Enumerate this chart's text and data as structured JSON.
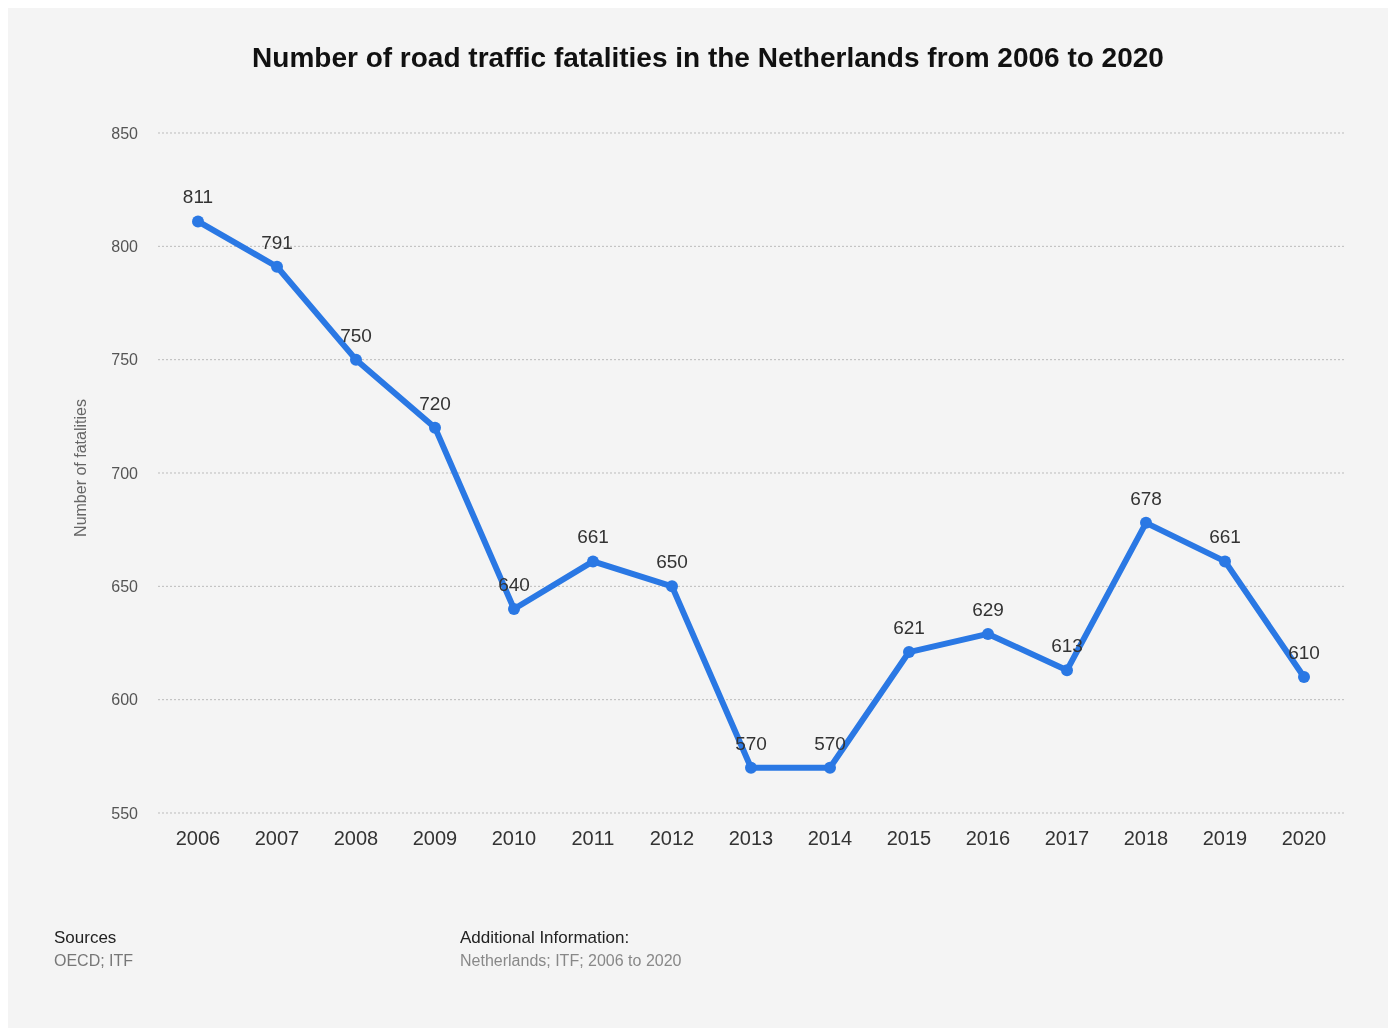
{
  "chart_data": {
    "type": "line",
    "title": "Number of road traffic fatalities in the Netherlands from 2006 to 2020",
    "ylabel": "Number of fatalities",
    "categories": [
      "2006",
      "2007",
      "2008",
      "2009",
      "2010",
      "2011",
      "2012",
      "2013",
      "2014",
      "2015",
      "2016",
      "2017",
      "2018",
      "2019",
      "2020"
    ],
    "series": [
      {
        "color": "#2a78e4",
        "values": [
          811,
          791,
          750,
          720,
          640,
          661,
          650,
          570,
          570,
          621,
          629,
          613,
          678,
          661,
          610
        ]
      }
    ],
    "ylim": [
      550,
      850
    ],
    "yticks": [
      550,
      600,
      650,
      700,
      750,
      800,
      850
    ],
    "grid": "y",
    "marker": "circle",
    "line_style": "solid",
    "data_labels": true,
    "legend": false,
    "annotations": [
      "Sources",
      "OECD; ITF",
      "Additional Information:",
      "Netherlands; ITF; 2006 to 2020"
    ]
  }
}
